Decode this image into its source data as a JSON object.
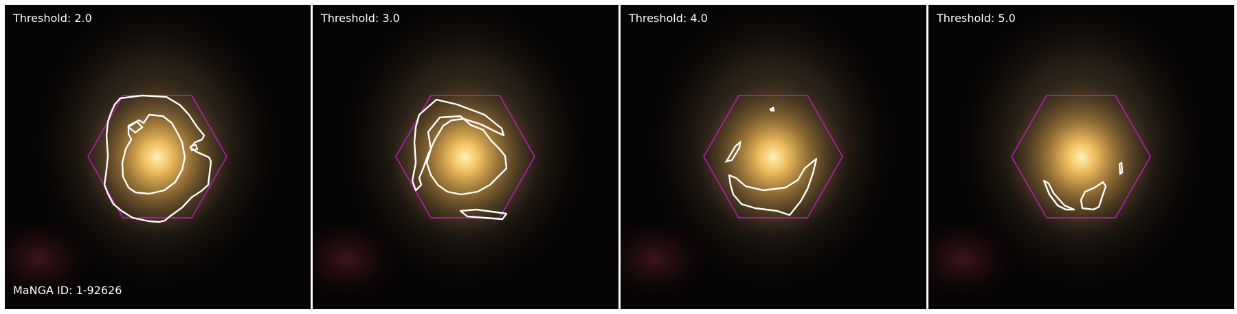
{
  "panels": [
    {
      "threshold_label": "Threshold: 2.0",
      "manga_id_label": "MaNGA ID: 1-92626"
    },
    {
      "threshold_label": "Threshold: 3.0"
    },
    {
      "threshold_label": "Threshold: 4.0"
    },
    {
      "threshold_label": "Threshold: 5.0"
    }
  ],
  "colors": {
    "hexagon_outline": "#c01cc0",
    "contour": "#ffffff",
    "galaxy_core": "#ffe39a",
    "sky_background": "#060404"
  }
}
